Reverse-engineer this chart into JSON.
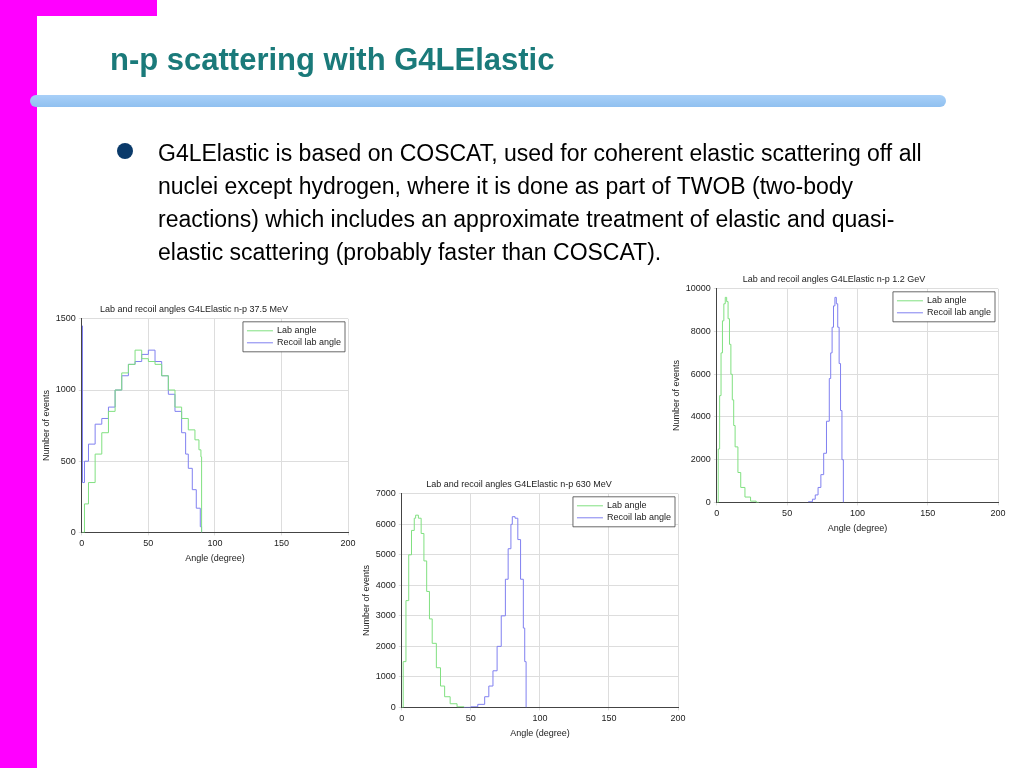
{
  "chart_data": [
    {
      "type": "other",
      "title": "n-p scattering with G4LElastic",
      "annotations": [
        "G4LElastic is based on COSCAT, used for coherent elastic scattering off all nuclei except hydrogen, where it is done as part of TWOB (two-body reactions) which includes an approximate treatment of elastic and quasi-elastic scattering (probably faster than COSCAT)."
      ]
    },
    {
      "type": "step",
      "title": "Lab and recoil angles G4LElastic n-p 37.5 MeV",
      "xlabel": "Angle (degree)",
      "ylabel": "Number of events",
      "xlim": [
        0,
        200
      ],
      "xticks": [
        0,
        50,
        100,
        150,
        200
      ],
      "ylim": [
        0,
        1500
      ],
      "yticks": [
        0,
        500,
        1000,
        1500
      ],
      "grid": true,
      "legend": "top right",
      "series": [
        {
          "name": "Lab angle",
          "color": "#80e080",
          "x": [
            0,
            2,
            5,
            10,
            15,
            20,
            25,
            30,
            35,
            40,
            45,
            50,
            55,
            60,
            65,
            70,
            75,
            80,
            85,
            88,
            89.5,
            90
          ],
          "values": [
            0,
            200,
            350,
            550,
            700,
            850,
            1000,
            1120,
            1180,
            1280,
            1220,
            1200,
            1180,
            1100,
            1000,
            880,
            800,
            720,
            650,
            580,
            530,
            0
          ]
        },
        {
          "name": "Recoil lab angle",
          "color": "#8080f0",
          "x": [
            0,
            0.5,
            2,
            5,
            10,
            15,
            20,
            25,
            30,
            35,
            40,
            45,
            50,
            55,
            60,
            65,
            70,
            75,
            78,
            80,
            83,
            86,
            89,
            90
          ],
          "values": [
            1450,
            350,
            500,
            620,
            760,
            800,
            880,
            1000,
            1100,
            1180,
            1200,
            1250,
            1280,
            1200,
            1100,
            970,
            850,
            700,
            550,
            450,
            300,
            170,
            40,
            0
          ]
        }
      ]
    },
    {
      "type": "step",
      "title": "Lab and recoil angles G4LElastic n-p 630 MeV",
      "xlabel": "Angle (degree)",
      "ylabel": "Number of events",
      "xlim": [
        0,
        200
      ],
      "xticks": [
        0,
        50,
        100,
        150,
        200
      ],
      "ylim": [
        0,
        7000
      ],
      "yticks": [
        0,
        1000,
        2000,
        3000,
        4000,
        5000,
        6000,
        7000
      ],
      "grid": true,
      "legend": "top right",
      "series": [
        {
          "name": "Lab angle",
          "color": "#80e080",
          "x": [
            0,
            1,
            3,
            5,
            7,
            9,
            10,
            12,
            14,
            16,
            18,
            20,
            22,
            25,
            28,
            31,
            35,
            40,
            45
          ],
          "values": [
            0,
            1500,
            3500,
            5000,
            5800,
            6200,
            6300,
            6200,
            5700,
            4800,
            3800,
            2900,
            2100,
            1300,
            700,
            350,
            120,
            20,
            0
          ]
        },
        {
          "name": "Recoil lab angle",
          "color": "#8080f0",
          "x": [
            45,
            50,
            55,
            60,
            63,
            66,
            69,
            72,
            75,
            77,
            79,
            80,
            82,
            84,
            86,
            88,
            89,
            90
          ],
          "values": [
            0,
            20,
            100,
            350,
            700,
            1200,
            2000,
            3000,
            4200,
            5200,
            6000,
            6250,
            6200,
            5500,
            4200,
            2600,
            1500,
            0
          ]
        }
      ]
    },
    {
      "type": "step",
      "title": "Lab and recoil angles G4LElastic n-p 1.2 GeV",
      "xlabel": "Angle (degree)",
      "ylabel": "Number of events",
      "xlim": [
        0,
        200
      ],
      "xticks": [
        0,
        50,
        100,
        150,
        200
      ],
      "ylim": [
        0,
        10000
      ],
      "yticks": [
        0,
        2000,
        4000,
        6000,
        8000,
        10000
      ],
      "grid": true,
      "legend": "top right",
      "series": [
        {
          "name": "Lab angle",
          "color": "#80e080",
          "x": [
            0,
            1,
            2,
            3,
            4,
            5,
            6,
            7,
            8,
            9,
            10,
            11,
            12,
            13,
            15,
            17,
            20,
            24,
            28,
            30
          ],
          "values": [
            0,
            2500,
            5000,
            7000,
            8500,
            9300,
            9600,
            9400,
            8600,
            7400,
            6000,
            4800,
            3600,
            2600,
            1400,
            700,
            250,
            60,
            0,
            0
          ]
        },
        {
          "name": "Recoil lab angle",
          "color": "#8080f0",
          "x": [
            65,
            68,
            70,
            72,
            74,
            76,
            78,
            80,
            81,
            82,
            83,
            84,
            85,
            86,
            87,
            88,
            89,
            90
          ],
          "values": [
            30,
            150,
            350,
            700,
            1300,
            2300,
            3800,
            5800,
            7000,
            8200,
            9200,
            9600,
            9300,
            8200,
            6500,
            4300,
            2000,
            0
          ]
        }
      ]
    }
  ]
}
